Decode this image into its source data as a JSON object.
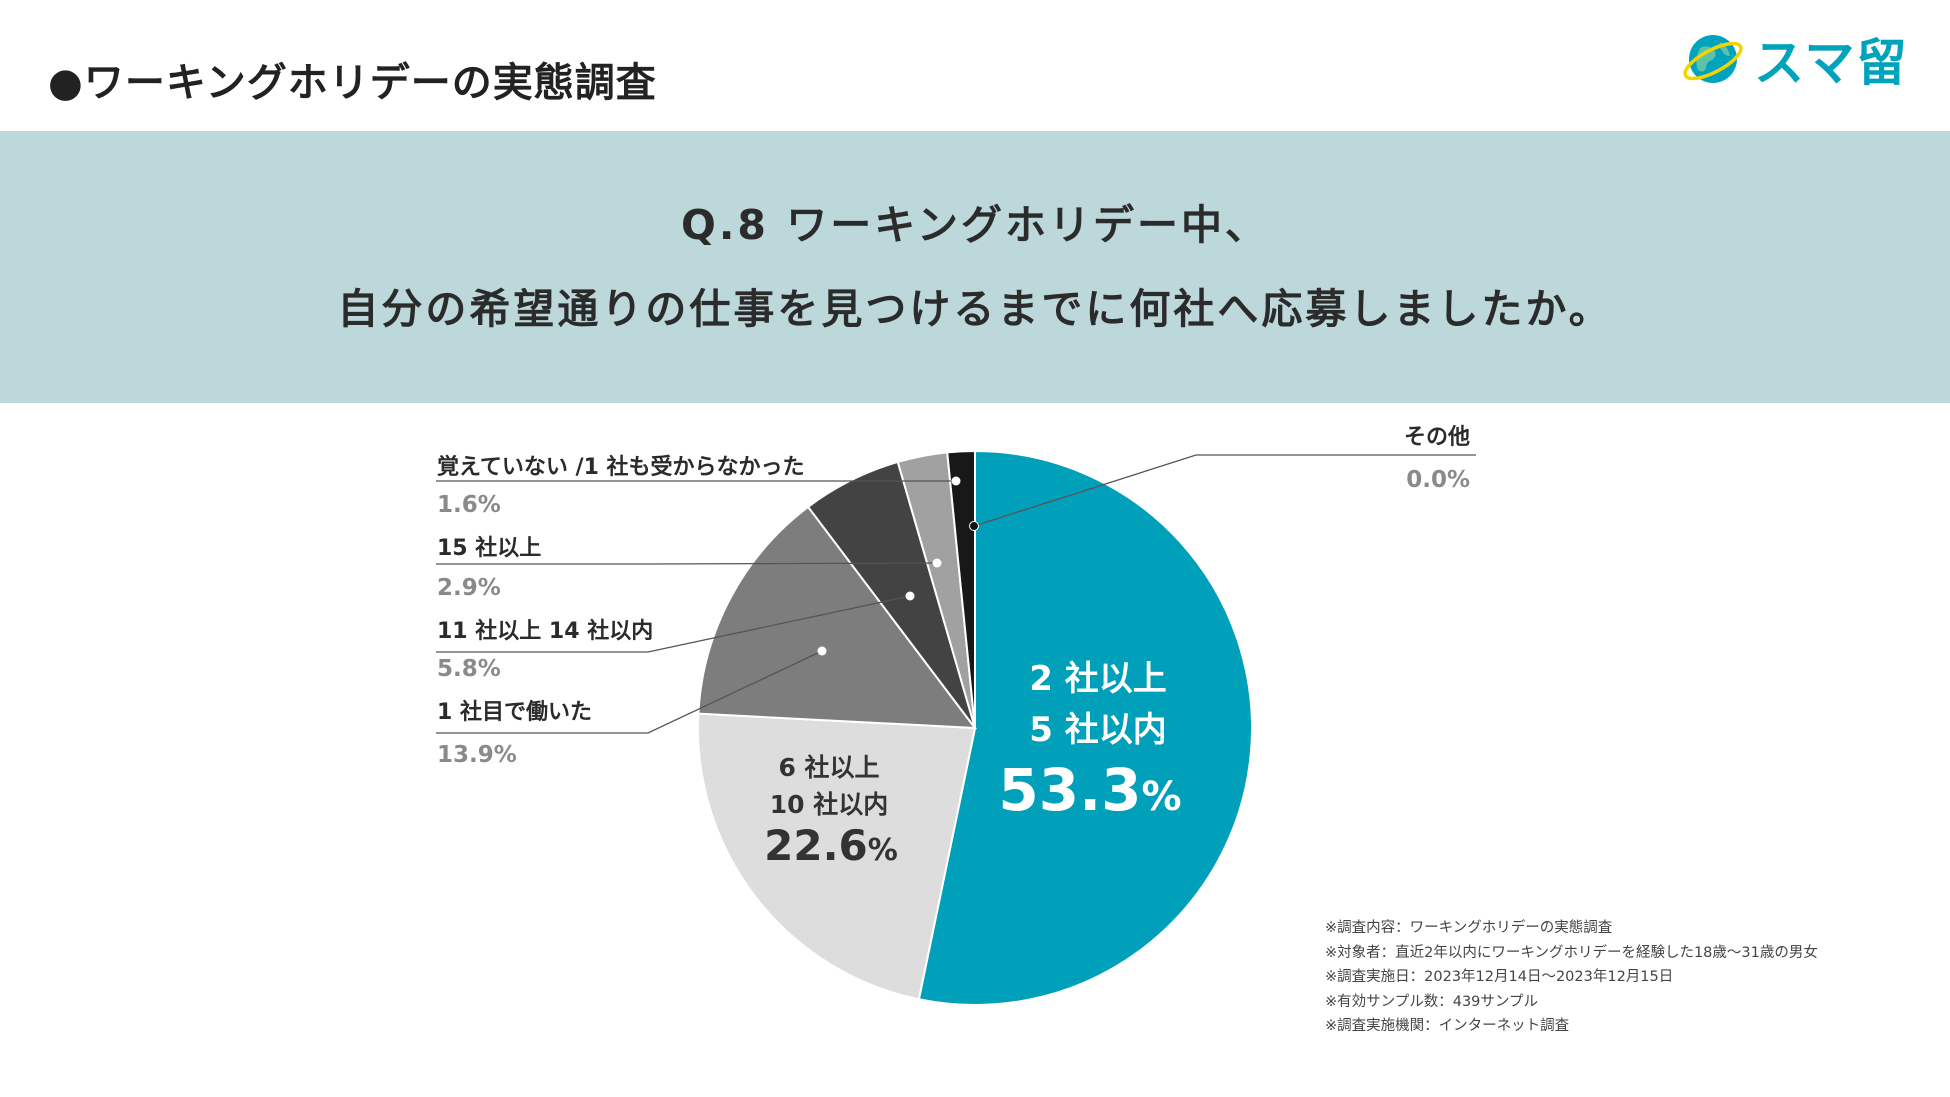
{
  "header": {
    "title": "●ワーキングホリデーの実態調査",
    "logo_text": "スマ留",
    "logo_icon": "globe-icon"
  },
  "question": {
    "line1": "Q.8 ワーキングホリデー中、",
    "line2": "自分の希望通りの仕事を見つけるまでに何社へ応募しましたか。"
  },
  "chart_data": {
    "type": "pie",
    "title": "Q.8 ワーキングホリデー中、自分の希望通りの仕事を見つけるまでに何社へ応募しましたか。",
    "start": "top, clockwise",
    "slices": [
      {
        "label_lines": [
          "2 社以上",
          "5 社以内"
        ],
        "value": 53.3,
        "pct_text": "53.3",
        "color": "#009fba",
        "label_mode": "inside-large"
      },
      {
        "label_lines": [
          "6 社以上",
          "10 社以内"
        ],
        "value": 22.6,
        "pct_text": "22.6",
        "color": "#dddddd",
        "label_mode": "inside"
      },
      {
        "label_lines": [
          "1 社目で働いた"
        ],
        "value": 13.9,
        "pct_text": "13.9%",
        "color": "#7d7d7d",
        "label_mode": "callout"
      },
      {
        "label_lines": [
          "11 社以上 14 社以内"
        ],
        "value": 5.8,
        "pct_text": "5.8%",
        "color": "#434343",
        "label_mode": "callout"
      },
      {
        "label_lines": [
          "15 社以上"
        ],
        "value": 2.9,
        "pct_text": "2.9%",
        "color": "#a1a1a1",
        "label_mode": "callout"
      },
      {
        "label_lines": [
          "覚えていない /1 社も受からなかった"
        ],
        "value": 1.6,
        "pct_text": "1.6%",
        "color": "#181818",
        "label_mode": "callout"
      },
      {
        "label_lines": [
          "その他"
        ],
        "value": 0.0,
        "pct_text": "0.0%",
        "color": "#ffffff",
        "label_mode": "callout-right"
      }
    ],
    "percent_sign": "%"
  },
  "notes": [
    "※調査内容：ワーキングホリデーの実態調査",
    "※対象者：直近2年以内にワーキングホリデーを経験した18歳〜31歳の男女",
    "※調査実施日：2023年12月14日〜2023年12月15日",
    "※有効サンプル数：439サンプル",
    "※調査実施機関：インターネット調査"
  ]
}
